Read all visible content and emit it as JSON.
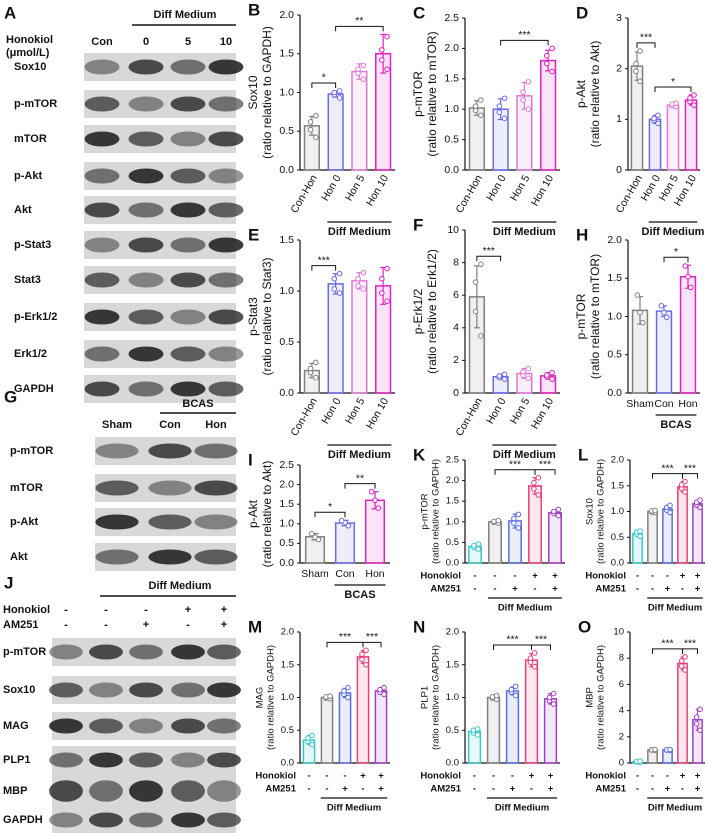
{
  "blots": [
    {
      "letter": "A",
      "treatment_label": [
        "Honokiol",
        "(μmol/L)"
      ],
      "group": "Diff Medium",
      "lanes": [
        "Con",
        "0",
        "5",
        "10"
      ],
      "rows": [
        "Sox10",
        "p-mTOR",
        "mTOR",
        "p-Akt",
        "Akt",
        "p-Stat3",
        "Stat3",
        "p-Erk1/2",
        "Erk1/2",
        "GAPDH"
      ]
    },
    {
      "letter": "G",
      "group": "BCAS",
      "lanes": [
        "Sham",
        "Con",
        "Hon"
      ],
      "rows": [
        "p-mTOR",
        "mTOR",
        "p-Akt",
        "Akt"
      ]
    },
    {
      "letter": "J",
      "group": "Diff Medium",
      "conditions": [
        {
          "name": "Honokiol",
          "marks": [
            "-",
            "-",
            "-",
            "+",
            "+"
          ]
        },
        {
          "name": "AM251",
          "marks": [
            "-",
            "-",
            "+",
            "-",
            "+"
          ]
        }
      ],
      "rows": [
        "p-mTOR",
        "Sox10",
        "MAG",
        "PLP1",
        "MBP",
        "GAPDH"
      ]
    }
  ],
  "chart_data": [
    {
      "type": "bar",
      "letter": "B",
      "ylabel": [
        "Sox10",
        "(ratio relative to GAPDH)"
      ],
      "categories": [
        "Con-Hon",
        "Hon 0",
        "Hon 5",
        "Hon 10"
      ],
      "values": [
        0.57,
        0.98,
        1.27,
        1.5
      ],
      "errors": [
        0.12,
        0.04,
        0.1,
        0.25
      ],
      "points": [
        [
          0.42,
          0.52,
          0.62,
          0.7
        ],
        [
          0.93,
          0.97,
          1.0,
          1.02
        ],
        [
          1.17,
          1.25,
          1.3,
          1.35
        ],
        [
          1.3,
          1.42,
          1.55,
          1.72
        ]
      ],
      "colors": [
        "#808080",
        "#6b6be8",
        "#e07ad6",
        "#e020c0"
      ],
      "ylim": [
        0,
        2
      ],
      "yticks": [
        {
          "value": 0,
          "label": "0.0"
        },
        0.5,
        {
          "value": 1,
          "label": "1.0"
        },
        1.5,
        {
          "value": 2,
          "label": "2.0"
        }
      ],
      "group": {
        "label": "Diff Medium",
        "from": 1,
        "to": 3
      },
      "significance": [
        {
          "from": 0,
          "to": 1,
          "label": "*"
        },
        {
          "from": 1,
          "to": 3,
          "label": "**"
        }
      ]
    },
    {
      "type": "bar",
      "letter": "C",
      "ylabel": [
        "p-mTOR",
        "(ratio relative to mTOR)"
      ],
      "categories": [
        "Con-Hon",
        "Hon 0",
        "Hon 5",
        "Hon 10"
      ],
      "values": [
        1.02,
        1.0,
        1.22,
        1.8
      ],
      "errors": [
        0.12,
        0.17,
        0.22,
        0.17
      ],
      "points": [
        [
          0.9,
          0.98,
          1.05,
          1.15
        ],
        [
          0.85,
          0.95,
          1.05,
          1.18
        ],
        [
          1.0,
          1.15,
          1.28,
          1.45
        ],
        [
          1.62,
          1.75,
          1.88,
          2.0
        ]
      ],
      "colors": [
        "#808080",
        "#6b6be8",
        "#e07ad6",
        "#e020c0"
      ],
      "ylim": [
        0,
        2.5
      ],
      "yticks": [
        {
          "value": 0,
          "label": "0.0"
        },
        0.5,
        {
          "value": 1,
          "label": "1.0"
        },
        1.5,
        {
          "value": 2,
          "label": "2.0"
        },
        2.5
      ],
      "group": {
        "label": "Diff Medium",
        "from": 1,
        "to": 3
      },
      "significance": [
        {
          "from": 1,
          "to": 3,
          "label": "***"
        }
      ]
    },
    {
      "type": "bar",
      "letter": "D",
      "ylabel": [
        "p-Akt",
        "(ratio relative to Akt)"
      ],
      "categories": [
        "Con-Hon",
        "Hon 0",
        "Hon 5",
        "Hon 10"
      ],
      "values": [
        2.05,
        1.0,
        1.28,
        1.38
      ],
      "errors": [
        0.28,
        0.08,
        0.04,
        0.1
      ],
      "points": [
        [
          1.75,
          1.95,
          2.1,
          2.35
        ],
        [
          0.92,
          0.98,
          1.02,
          1.08
        ],
        [
          1.25,
          1.27,
          1.3,
          1.32
        ],
        [
          1.28,
          1.35,
          1.42,
          1.48
        ]
      ],
      "colors": [
        "#808080",
        "#6b6be8",
        "#e07ad6",
        "#e020c0"
      ],
      "ylim": [
        0,
        3
      ],
      "yticks": [
        0,
        1,
        2,
        3
      ],
      "group": {
        "label": "Diff Medium",
        "from": 1,
        "to": 3
      },
      "significance": [
        {
          "from": 0,
          "to": 1,
          "label": "***"
        },
        {
          "from": 1,
          "to": 3,
          "label": "*"
        }
      ]
    },
    {
      "type": "bar",
      "letter": "E",
      "ylabel": [
        "p-Stat3",
        "(ratio relative to Stat3)"
      ],
      "categories": [
        "Con-Hon",
        "Hon 0",
        "Hon 5",
        "Hon 10"
      ],
      "values": [
        0.22,
        1.07,
        1.1,
        1.05
      ],
      "errors": [
        0.07,
        0.1,
        0.08,
        0.18
      ],
      "points": [
        [
          0.15,
          0.2,
          0.24,
          0.3
        ],
        [
          0.98,
          1.02,
          1.12,
          1.17
        ],
        [
          1.02,
          1.05,
          1.12,
          1.18
        ],
        [
          0.9,
          0.98,
          1.12,
          1.22
        ]
      ],
      "colors": [
        "#808080",
        "#6b6be8",
        "#e07ad6",
        "#e020c0"
      ],
      "ylim": [
        0,
        1.5
      ],
      "yticks": [
        {
          "value": 0,
          "label": "0.0"
        },
        0.5,
        {
          "value": 1,
          "label": "1.0"
        },
        1.5
      ],
      "group": {
        "label": "Diff Medium",
        "from": 1,
        "to": 3
      },
      "significance": [
        {
          "from": 0,
          "to": 1,
          "label": "***"
        }
      ]
    },
    {
      "type": "bar",
      "letter": "F",
      "ylabel": [
        "p-Erk1/2",
        "(ratio relative to Erk1/2)"
      ],
      "categories": [
        "Con-Hon",
        "Hon 0",
        "Hon 5",
        "Hon 10"
      ],
      "values": [
        5.9,
        1.0,
        1.2,
        1.05
      ],
      "errors": [
        1.9,
        0.15,
        0.3,
        0.2
      ],
      "points": [
        [
          3.5,
          5.0,
          6.8,
          7.9
        ],
        [
          0.85,
          0.95,
          1.05,
          1.15
        ],
        [
          0.9,
          1.1,
          1.3,
          1.5
        ],
        [
          0.85,
          1.0,
          1.1,
          1.25
        ]
      ],
      "colors": [
        "#808080",
        "#6b6be8",
        "#e07ad6",
        "#e020c0"
      ],
      "ylim": [
        0,
        10
      ],
      "yticks": [
        0,
        2,
        4,
        6,
        8,
        10
      ],
      "group": {
        "label": "Diff Medium",
        "from": 1,
        "to": 3
      },
      "significance": [
        {
          "from": 0,
          "to": 1,
          "label": "***"
        }
      ]
    },
    {
      "type": "bar",
      "letter": "H",
      "ylabel": [
        "p-mTOR",
        "(ratio relative to mTOR)"
      ],
      "categories": [
        "Sham",
        "Con",
        "Hon"
      ],
      "values": [
        1.08,
        1.07,
        1.52
      ],
      "errors": [
        0.18,
        0.07,
        0.15
      ],
      "points": [
        [
          0.92,
          1.05,
          1.28
        ],
        [
          0.99,
          1.05,
          1.14
        ],
        [
          1.38,
          1.52,
          1.66
        ]
      ],
      "colors": [
        "#808080",
        "#6b6be8",
        "#e020c0"
      ],
      "ylim": [
        0,
        2
      ],
      "yticks": [
        {
          "value": 0,
          "label": "0.0"
        },
        0.5,
        {
          "value": 1,
          "label": "1.0"
        },
        1.5,
        {
          "value": 2,
          "label": "2.0"
        }
      ],
      "group": {
        "label": "BCAS",
        "from": 1,
        "to": 2
      },
      "significance": [
        {
          "from": 1,
          "to": 2,
          "label": "*"
        }
      ]
    },
    {
      "type": "bar",
      "letter": "I",
      "ylabel": [
        "p-Akt",
        "(ratio relative to Akt)"
      ],
      "categories": [
        "Sham",
        "Con",
        "Hon"
      ],
      "values": [
        0.67,
        1.02,
        1.6
      ],
      "errors": [
        0.08,
        0.07,
        0.22
      ],
      "points": [
        [
          0.6,
          0.66,
          0.75
        ],
        [
          0.95,
          1.03,
          1.08
        ],
        [
          1.4,
          1.6,
          1.82
        ]
      ],
      "colors": [
        "#808080",
        "#6b6be8",
        "#e020c0"
      ],
      "ylim": [
        0,
        2.5
      ],
      "yticks": [
        {
          "value": 0,
          "label": "0.0"
        },
        0.5,
        {
          "value": 1,
          "label": "1.0"
        },
        1.5,
        {
          "value": 2,
          "label": "2.0"
        },
        2.5
      ],
      "group": {
        "label": "BCAS",
        "from": 1,
        "to": 2
      },
      "significance": [
        {
          "from": 0,
          "to": 1,
          "label": "*"
        },
        {
          "from": 1,
          "to": 2,
          "label": "**"
        }
      ]
    },
    {
      "type": "bar",
      "letter": "K",
      "ylabel": [
        "p-mTOR",
        "(ratio relative to GAPDH)"
      ],
      "values": [
        0.4,
        1.0,
        1.02,
        1.87,
        1.22
      ],
      "errors": [
        0.06,
        0.03,
        0.17,
        0.2,
        0.07
      ],
      "points": [
        [
          0.34,
          0.38,
          0.42,
          0.46
        ],
        [
          0.97,
          0.99,
          1.01,
          1.03
        ],
        [
          0.85,
          0.97,
          1.08,
          1.18
        ],
        [
          1.65,
          1.8,
          1.95,
          2.07
        ],
        [
          1.15,
          1.2,
          1.25,
          1.3
        ]
      ],
      "colors": [
        "#3cc8c8",
        "#808080",
        "#5a6ee0",
        "#e8407a",
        "#a040c0"
      ],
      "ylim": [
        0,
        2.5
      ],
      "yticks": [
        {
          "value": 0,
          "label": "0.0"
        },
        0.5,
        {
          "value": 1,
          "label": "1.0"
        },
        1.5,
        {
          "value": 2,
          "label": "2.0"
        },
        2.5
      ],
      "conditions": [
        {
          "name": "Honokiol",
          "marks": [
            "-",
            "-",
            "-",
            "+",
            "+"
          ]
        },
        {
          "name": "AM251",
          "marks": [
            "-",
            "-",
            "+",
            "-",
            "+"
          ]
        }
      ],
      "group": {
        "label": "Diff Medium",
        "from": 1,
        "to": 4
      },
      "significance": [
        {
          "from": 1,
          "to": 3,
          "label": "***"
        },
        {
          "from": 3,
          "to": 4,
          "label": "***"
        }
      ]
    },
    {
      "type": "bar",
      "letter": "L",
      "ylabel": [
        "Sox10",
        "(ratio relative to GAPDH)"
      ],
      "values": [
        0.57,
        1.0,
        1.05,
        1.48,
        1.15
      ],
      "errors": [
        0.05,
        0.02,
        0.07,
        0.1,
        0.07
      ],
      "points": [
        [
          0.52,
          0.56,
          0.6,
          0.62
        ],
        [
          0.98,
          0.99,
          1.01,
          1.02
        ],
        [
          0.98,
          1.03,
          1.08,
          1.12
        ],
        [
          1.38,
          1.45,
          1.52,
          1.58
        ],
        [
          1.08,
          1.13,
          1.18,
          1.22
        ]
      ],
      "colors": [
        "#3cc8c8",
        "#808080",
        "#5a6ee0",
        "#e8407a",
        "#a040c0"
      ],
      "ylim": [
        0,
        2
      ],
      "yticks": [
        {
          "value": 0,
          "label": "0.0"
        },
        0.5,
        {
          "value": 1,
          "label": "1.0"
        },
        1.5,
        {
          "value": 2,
          "label": "2.0"
        }
      ],
      "conditions": [
        {
          "name": "Honokiol",
          "marks": [
            "-",
            "-",
            "-",
            "+",
            "+"
          ]
        },
        {
          "name": "AM251",
          "marks": [
            "-",
            "-",
            "+",
            "-",
            "+"
          ]
        }
      ],
      "group": {
        "label": "Diff Medium",
        "from": 1,
        "to": 4
      },
      "significance": [
        {
          "from": 1,
          "to": 3,
          "label": "***"
        },
        {
          "from": 3,
          "to": 4,
          "label": "***"
        }
      ]
    },
    {
      "type": "bar",
      "letter": "M",
      "ylabel": [
        "MAG",
        "(ratio relative to GAPDH)"
      ],
      "values": [
        0.35,
        1.0,
        1.07,
        1.62,
        1.1
      ],
      "errors": [
        0.07,
        0.02,
        0.07,
        0.1,
        0.05
      ],
      "points": [
        [
          0.28,
          0.33,
          0.38,
          0.42
        ],
        [
          0.98,
          0.99,
          1.01,
          1.02
        ],
        [
          1.0,
          1.05,
          1.1,
          1.15
        ],
        [
          1.5,
          1.58,
          1.66,
          1.72
        ],
        [
          1.05,
          1.08,
          1.12,
          1.15
        ]
      ],
      "colors": [
        "#3cc8c8",
        "#808080",
        "#5a6ee0",
        "#e8407a",
        "#a040c0"
      ],
      "ylim": [
        0,
        2
      ],
      "yticks": [
        {
          "value": 0,
          "label": "0.0"
        },
        0.5,
        {
          "value": 1,
          "label": "1.0"
        },
        1.5,
        {
          "value": 2,
          "label": "2.0"
        }
      ],
      "conditions": [
        {
          "name": "Honokiol",
          "marks": [
            "-",
            "-",
            "-",
            "+",
            "+"
          ]
        },
        {
          "name": "AM251",
          "marks": [
            "-",
            "-",
            "+",
            "-",
            "+"
          ]
        }
      ],
      "group": {
        "label": "Diff Medium",
        "from": 1,
        "to": 4
      },
      "significance": [
        {
          "from": 1,
          "to": 3,
          "label": "***"
        },
        {
          "from": 3,
          "to": 4,
          "label": "***"
        }
      ]
    },
    {
      "type": "bar",
      "letter": "N",
      "ylabel": [
        "PLP1",
        "(ratio relative to GAPDH)"
      ],
      "values": [
        0.48,
        1.0,
        1.1,
        1.57,
        0.98
      ],
      "errors": [
        0.05,
        0.03,
        0.06,
        0.1,
        0.08
      ],
      "points": [
        [
          0.43,
          0.46,
          0.5,
          0.52
        ],
        [
          0.97,
          0.99,
          1.01,
          1.03
        ],
        [
          1.03,
          1.08,
          1.12,
          1.17
        ],
        [
          1.47,
          1.54,
          1.6,
          1.68
        ],
        [
          0.9,
          0.95,
          1.0,
          1.06
        ]
      ],
      "colors": [
        "#3cc8c8",
        "#808080",
        "#5a6ee0",
        "#e8407a",
        "#a040c0"
      ],
      "ylim": [
        0,
        2
      ],
      "yticks": [
        {
          "value": 0,
          "label": "0.0"
        },
        0.5,
        {
          "value": 1,
          "label": "1.0"
        },
        1.5,
        {
          "value": 2,
          "label": "2.0"
        }
      ],
      "conditions": [
        {
          "name": "Honokiol",
          "marks": [
            "-",
            "-",
            "-",
            "+",
            "+"
          ]
        },
        {
          "name": "AM251",
          "marks": [
            "-",
            "-",
            "+",
            "-",
            "+"
          ]
        }
      ],
      "group": {
        "label": "Diff Medium",
        "from": 1,
        "to": 4
      },
      "significance": [
        {
          "from": 1,
          "to": 3,
          "label": "***"
        },
        {
          "from": 3,
          "to": 4,
          "label": "***"
        }
      ]
    },
    {
      "type": "bar",
      "letter": "O",
      "ylabel": [
        "MBP",
        "(ratio relative to GAPDH)"
      ],
      "values": [
        0.1,
        1.0,
        1.0,
        7.6,
        3.3
      ],
      "errors": [
        0.05,
        0.03,
        0.03,
        0.5,
        0.8
      ],
      "points": [
        [
          0.05,
          0.08,
          0.12,
          0.15
        ],
        [
          0.97,
          0.99,
          1.01,
          1.03
        ],
        [
          0.97,
          0.99,
          1.01,
          1.03
        ],
        [
          7.1,
          7.4,
          7.8,
          8.1
        ],
        [
          2.5,
          3.0,
          3.5,
          4.1
        ]
      ],
      "colors": [
        "#3cc8c8",
        "#808080",
        "#5a6ee0",
        "#e8407a",
        "#a040c0"
      ],
      "ylim": [
        0,
        10
      ],
      "yticks": [
        0,
        2,
        4,
        6,
        8,
        10
      ],
      "conditions": [
        {
          "name": "Honokiol",
          "marks": [
            "-",
            "-",
            "-",
            "+",
            "+"
          ]
        },
        {
          "name": "AM251",
          "marks": [
            "-",
            "-",
            "+",
            "-",
            "+"
          ]
        }
      ],
      "group": {
        "label": "Diff Medium",
        "from": 1,
        "to": 4
      },
      "significance": [
        {
          "from": 1,
          "to": 3,
          "label": "***"
        },
        {
          "from": 3,
          "to": 4,
          "label": "***"
        }
      ]
    }
  ]
}
